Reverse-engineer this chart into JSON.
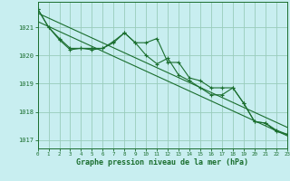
{
  "xlabel": "Graphe pression niveau de la mer (hPa)",
  "bg_color": "#c8eef0",
  "grid_color": "#99ccbb",
  "line_color": "#1a6e2e",
  "xlim": [
    0,
    23
  ],
  "ylim": [
    1016.7,
    1021.9
  ],
  "yticks": [
    1017,
    1018,
    1019,
    1020,
    1021
  ],
  "xticks": [
    0,
    1,
    2,
    3,
    4,
    5,
    6,
    7,
    8,
    9,
    10,
    11,
    12,
    13,
    14,
    15,
    16,
    17,
    18,
    19,
    20,
    21,
    22,
    23
  ],
  "series1": [
    1021.65,
    1021.0,
    1020.6,
    1020.25,
    1020.25,
    1020.25,
    1020.25,
    1020.5,
    1020.8,
    1020.45,
    1020.45,
    1020.6,
    1019.75,
    1019.75,
    1019.2,
    1019.1,
    1018.85,
    1018.85,
    1018.85,
    1018.3,
    1017.65,
    1017.6,
    1017.3,
    1017.2
  ],
  "series2": [
    1021.65,
    1021.0,
    1020.55,
    1020.2,
    1020.25,
    1020.2,
    1020.25,
    1020.45,
    1020.8,
    1020.45,
    1020.0,
    1019.7,
    1019.9,
    1019.3,
    1019.1,
    1018.85,
    1018.6,
    1018.6,
    1018.85,
    1018.3,
    1017.65,
    1017.6,
    1017.35,
    1017.2
  ],
  "trend1_y0": 1021.5,
  "trend1_y1": 1017.45,
  "trend2_y0": 1021.2,
  "trend2_y1": 1017.15
}
